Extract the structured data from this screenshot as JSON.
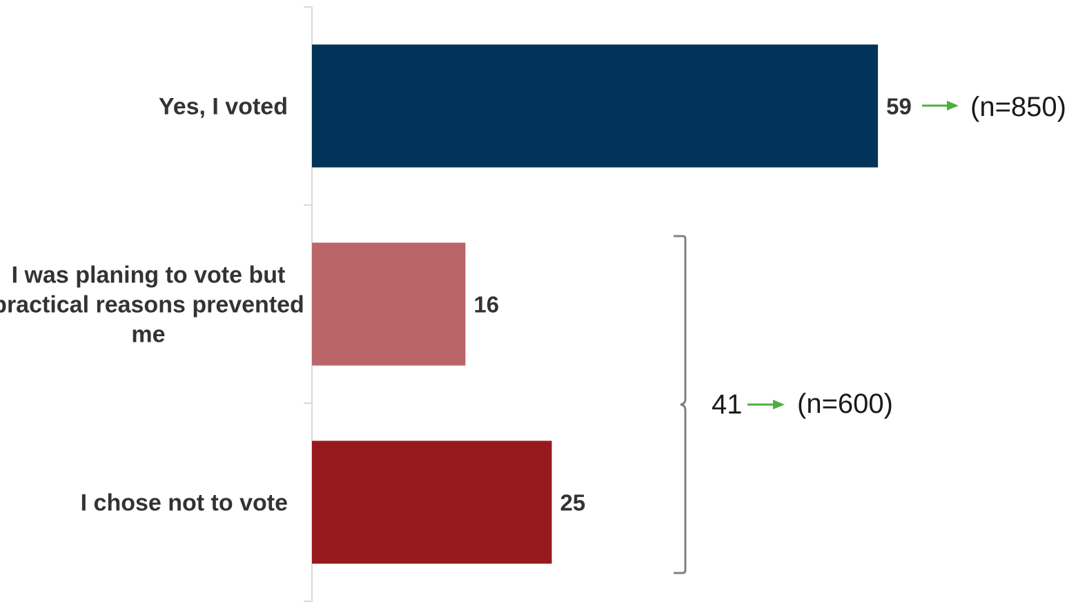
{
  "chart_data": {
    "type": "bar",
    "orientation": "horizontal",
    "categories": [
      "Yes, I voted",
      "I was planing to vote but practical reasons prevented me",
      "I chose not to vote"
    ],
    "category_lines": [
      [
        "Yes, I voted"
      ],
      [
        "I was planing to vote but",
        "practical reasons prevented",
        "me"
      ],
      [
        "I chose not to vote"
      ]
    ],
    "values": [
      59,
      16,
      25
    ],
    "value_labels": [
      "59",
      "16",
      "25"
    ],
    "colors": [
      "#023459",
      "#BA6669",
      "#961A1D"
    ],
    "xlim": [
      0,
      59
    ],
    "grid": false,
    "legend": "none",
    "annotations": {
      "yes_n": "(n=850)",
      "group_total": "41",
      "group_n": "(n=600)",
      "arrow_color": "#4CAF3C",
      "bracket_color": "#808080",
      "axis_color": "#D9D9D9"
    }
  }
}
